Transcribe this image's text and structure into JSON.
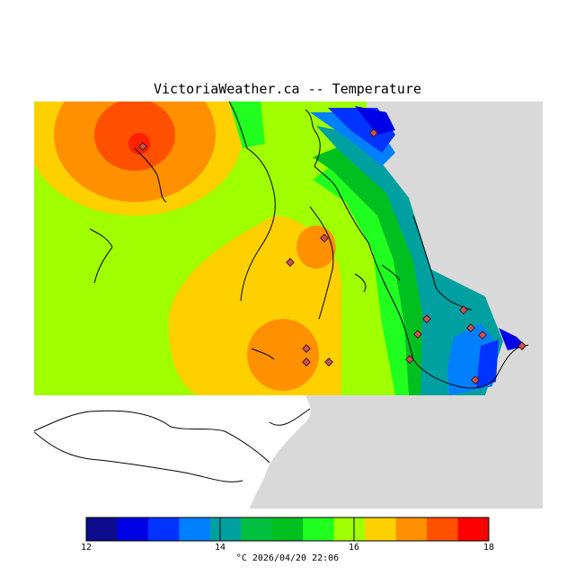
{
  "header": {
    "title": "VictoriaWeather.ca -- Temperature"
  },
  "colorbar": {
    "ticks": [
      "12",
      "14",
      "16",
      "18"
    ],
    "colors": [
      "#0c0c8c",
      "#0000e6",
      "#0033ff",
      "#0080ff",
      "#00a0a0",
      "#00c040",
      "#00c020",
      "#20ff20",
      "#a0ff00",
      "#ffd000",
      "#ff9000",
      "#ff5000",
      "#ff0000"
    ]
  },
  "footer": {
    "timestamp": "°C  2026/04/20 22:06"
  },
  "palette": {
    "land_base": "#a0ff00",
    "no_data": "#d9d9d9",
    "water_mask": "#ffffff",
    "coastline": "#000000",
    "station": "#d05050"
  }
}
